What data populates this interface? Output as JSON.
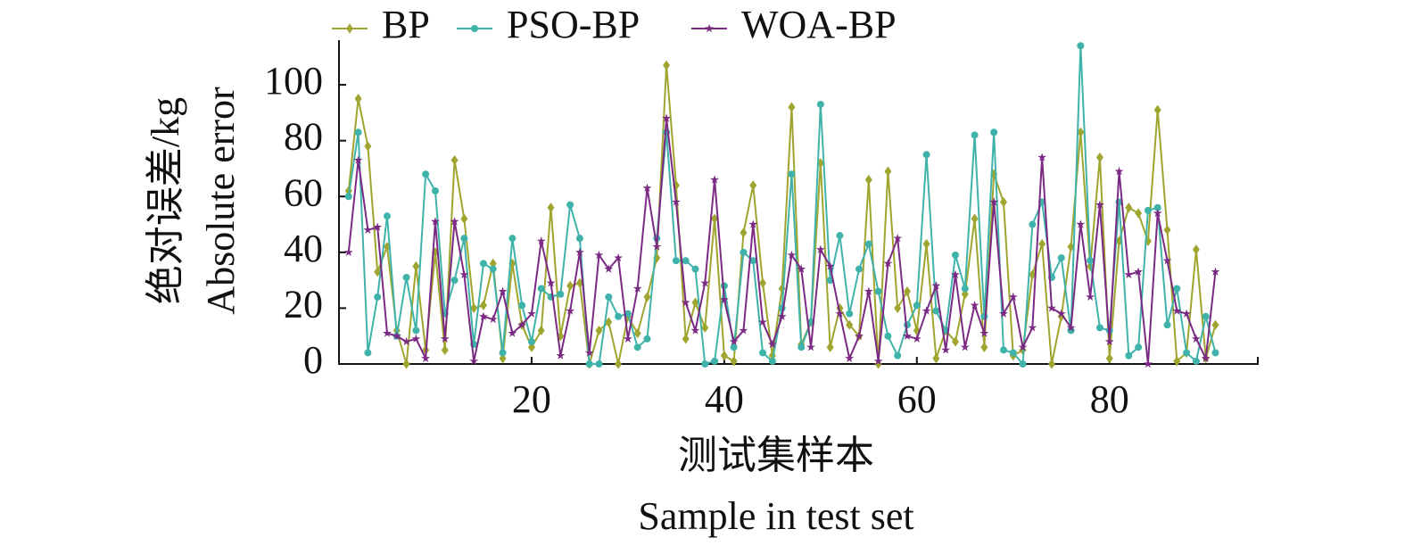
{
  "chart_data": {
    "type": "line",
    "x_label": "测试集样本",
    "x_label_en": "Sample in test set",
    "y_label": "绝对误差/kg",
    "y_label_en": "Absolute error",
    "x": [
      1,
      2,
      3,
      4,
      5,
      6,
      7,
      8,
      9,
      10,
      11,
      12,
      13,
      14,
      15,
      16,
      17,
      18,
      19,
      20,
      21,
      22,
      23,
      24,
      25,
      26,
      27,
      28,
      29,
      30,
      31,
      32,
      33,
      34,
      35,
      36,
      37,
      38,
      39,
      40,
      41,
      42,
      43,
      44,
      45,
      46,
      47,
      48,
      49,
      50,
      51,
      52,
      53,
      54,
      55,
      56,
      57,
      58,
      59,
      60,
      61,
      62,
      63,
      64,
      65,
      66,
      67,
      68,
      69,
      70,
      71,
      72,
      73,
      74,
      75,
      76,
      77,
      78,
      79,
      80,
      81,
      82,
      83,
      84,
      85,
      86,
      87,
      88,
      89,
      90,
      91
    ],
    "series": [
      {
        "name": "BP",
        "color": "#9fa52e",
        "marker": "diamond",
        "values": [
          62,
          95,
          78,
          33,
          42,
          12,
          0,
          35,
          5,
          40,
          5,
          73,
          52,
          20,
          21,
          36,
          2,
          36,
          14,
          6,
          12,
          56,
          10,
          28,
          29,
          0,
          12,
          15,
          0,
          17,
          11,
          24,
          38,
          107,
          64,
          9,
          22,
          13,
          52,
          3,
          1,
          47,
          64,
          29,
          3,
          27,
          92,
          7,
          15,
          72,
          6,
          20,
          14,
          10,
          66,
          0,
          69,
          20,
          26,
          12,
          43,
          2,
          12,
          8,
          25,
          52,
          6,
          68,
          58,
          3,
          5,
          32,
          43,
          0,
          17,
          42,
          83,
          35,
          74,
          2,
          44,
          56,
          54,
          44,
          91,
          48,
          1,
          4,
          41,
          2,
          14
        ]
      },
      {
        "name": "PSO-BP",
        "color": "#3fb3aa",
        "marker": "circle",
        "values": [
          60,
          83,
          4,
          24,
          53,
          10,
          31,
          12,
          68,
          62,
          18,
          30,
          45,
          7,
          36,
          34,
          4,
          45,
          21,
          8,
          27,
          24,
          25,
          57,
          45,
          0,
          0,
          24,
          17,
          18,
          6,
          9,
          45,
          83,
          37,
          37,
          34,
          0,
          1,
          28,
          6,
          40,
          37,
          4,
          1,
          20,
          68,
          6,
          15,
          93,
          30,
          46,
          18,
          34,
          43,
          26,
          10,
          3,
          14,
          21,
          75,
          19,
          12,
          39,
          27,
          82,
          17,
          83,
          5,
          4,
          0,
          50,
          58,
          31,
          38,
          12,
          114,
          37,
          13,
          12,
          58,
          3,
          6,
          55,
          56,
          14,
          27,
          4,
          1,
          17,
          4
        ]
      },
      {
        "name": "WOA-BP",
        "color": "#7b2a84",
        "marker": "star",
        "values": [
          40,
          73,
          48,
          49,
          11,
          10,
          8,
          9,
          2,
          51,
          9,
          51,
          32,
          1,
          17,
          16,
          26,
          11,
          14,
          18,
          44,
          29,
          3,
          19,
          40,
          4,
          39,
          34,
          38,
          9,
          27,
          63,
          42,
          88,
          58,
          22,
          12,
          29,
          66,
          23,
          8,
          12,
          50,
          15,
          7,
          17,
          39,
          34,
          6,
          41,
          35,
          18,
          2,
          10,
          26,
          1,
          36,
          45,
          10,
          9,
          19,
          28,
          5,
          32,
          6,
          21,
          11,
          58,
          18,
          24,
          6,
          13,
          74,
          20,
          18,
          13,
          50,
          24,
          57,
          8,
          69,
          32,
          33,
          0,
          54,
          37,
          19,
          18,
          9,
          2,
          33
        ]
      }
    ],
    "xlim": [
      0,
      95.4
    ],
    "ylim": [
      0,
      116
    ],
    "xticks": [
      20,
      40,
      60,
      80
    ],
    "yticks": [
      0,
      20,
      40,
      60,
      80,
      100
    ],
    "legend": "top"
  }
}
